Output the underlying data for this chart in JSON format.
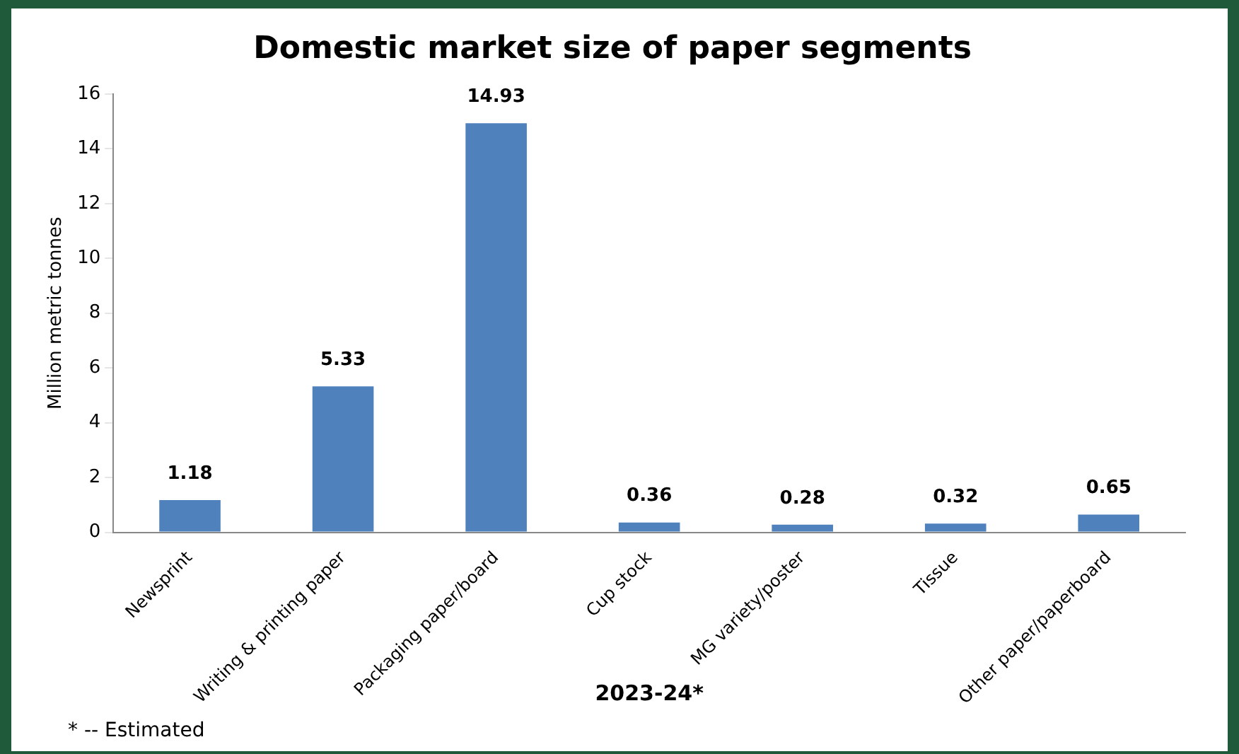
{
  "chart_data": {
    "type": "bar",
    "title": "Domestic market size of paper segments",
    "xlabel": "2023-24*",
    "ylabel": "Million metric tonnes",
    "categories": [
      "Newsprint",
      "Writing & printing paper",
      "Packaging paper/board",
      "Cup stock",
      "MG variety/poster",
      "Tissue",
      "Other paper/paperboard"
    ],
    "values": [
      1.18,
      5.33,
      14.93,
      0.36,
      0.28,
      0.32,
      0.65
    ],
    "color": "#4f81bd",
    "ylim": [
      0,
      16
    ],
    "yticks": [
      0,
      2,
      4,
      6,
      8,
      10,
      12,
      14,
      16
    ],
    "grid": false,
    "legend": false,
    "data_labels": true,
    "annotations": [
      "* -- Estimated"
    ]
  }
}
